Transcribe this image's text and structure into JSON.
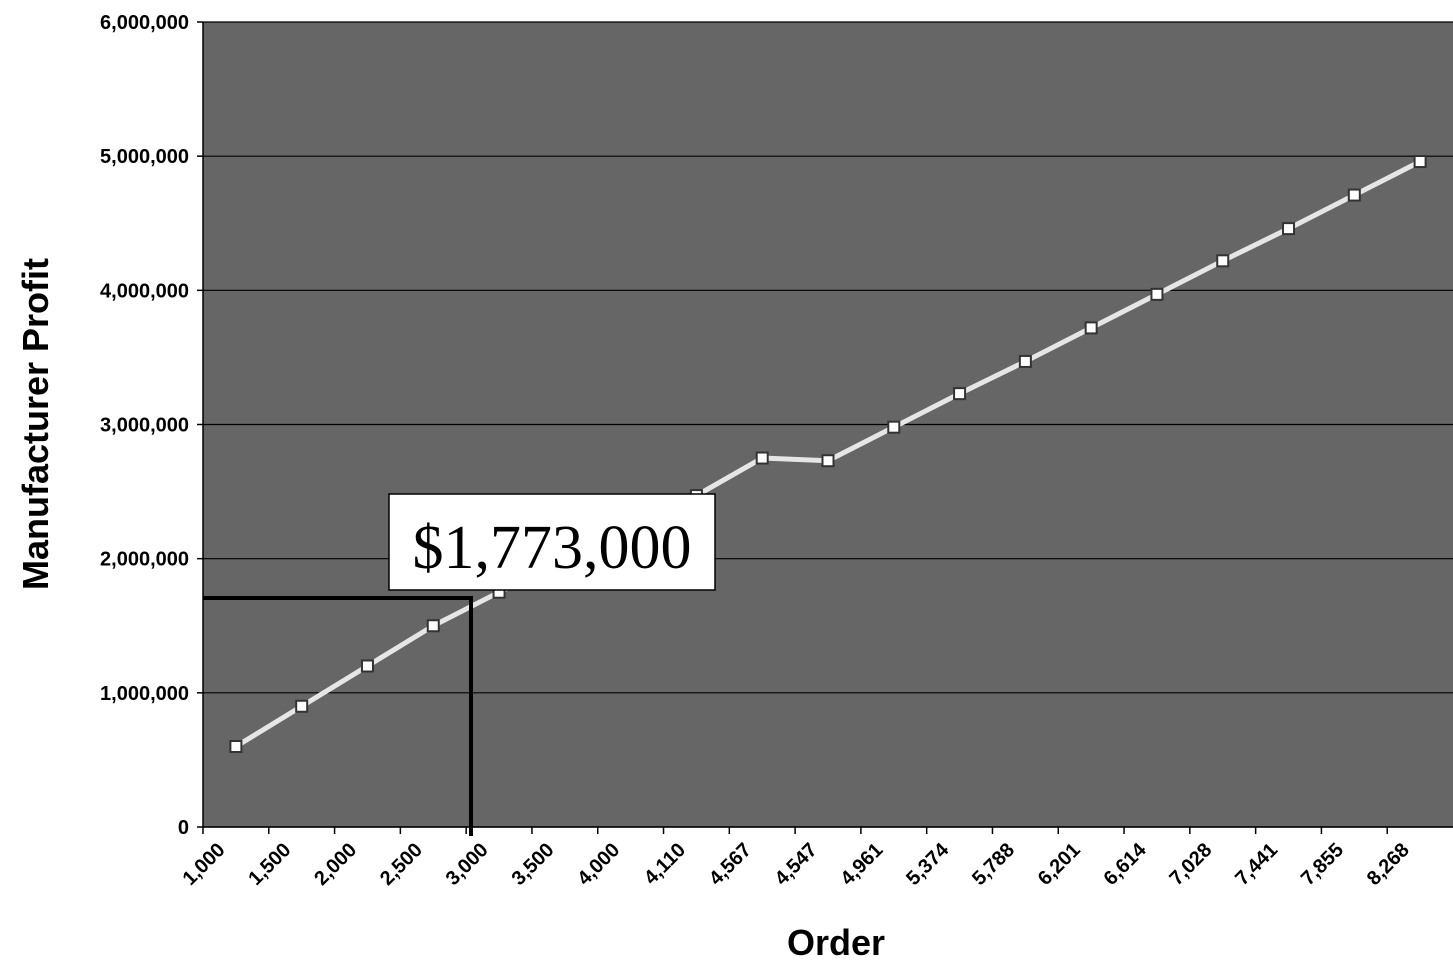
{
  "chart_data": {
    "type": "line",
    "xlabel": "Order",
    "ylabel": "Manufacturer Profit",
    "categories": [
      "1,000",
      "1,500",
      "2,000",
      "2,500",
      "3,000",
      "3,500",
      "4,000",
      "4,110",
      "4,567",
      "4,547",
      "4,961",
      "5,374",
      "5,788",
      "6,201",
      "6,614",
      "7,028",
      "7,441",
      "7,855",
      "8,268"
    ],
    "series": [
      {
        "color": "#e6e6e6",
        "values": [
          600000,
          900000,
          1200000,
          1500000,
          1750000,
          1990000,
          2230000,
          2470000,
          2750000,
          2730000,
          2980000,
          3230000,
          3470000,
          3720000,
          3970000,
          4220000,
          4460000,
          4710000,
          4960000
        ]
      }
    ],
    "ylim": [
      0,
      6000000
    ],
    "yticks": [
      0,
      {
        "value": 1000000,
        "label": "1,000,000"
      },
      {
        "value": 2000000,
        "label": "2,000,000"
      },
      {
        "value": 3000000,
        "label": "3,000,000"
      },
      {
        "value": 4000000,
        "label": "4,000,000"
      },
      {
        "value": 5000000,
        "label": "5,000,000"
      },
      {
        "value": 6000000,
        "label": "6,000,000"
      }
    ],
    "grid": true,
    "background": "#666666",
    "annotation": "$1,773,000"
  }
}
